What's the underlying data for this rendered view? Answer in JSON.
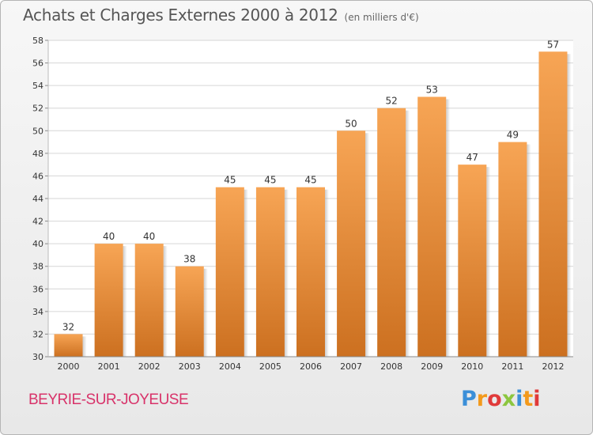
{
  "title": "Achats et Charges Externes 2000 à 2012",
  "subtitle": "(en milliers d'€)",
  "commune": "BEYRIE-SUR-JOYEUSE",
  "logo": {
    "letters": [
      "P",
      "r",
      "o",
      "x",
      "i",
      "t",
      "i"
    ],
    "colors": [
      "#3b8fd8",
      "#f39a1c",
      "#e03a3a",
      "#8cc63f",
      "#3b8fd8",
      "#f39a1c",
      "#e03a3a"
    ]
  },
  "colors": {
    "bar_light": "#f7a555",
    "bar_dark": "#cc7020",
    "grid": "#d6d6d6",
    "axis_text": "#333333"
  },
  "chart_data": {
    "type": "bar",
    "categories": [
      "2000",
      "2001",
      "2002",
      "2003",
      "2004",
      "2005",
      "2006",
      "2007",
      "2008",
      "2009",
      "2010",
      "2011",
      "2012"
    ],
    "values": [
      32,
      40,
      40,
      38,
      45,
      45,
      45,
      50,
      52,
      53,
      47,
      49,
      57
    ],
    "ylim": [
      30,
      58
    ],
    "yticks": [
      30,
      32,
      34,
      36,
      38,
      40,
      42,
      44,
      46,
      48,
      50,
      52,
      54,
      56,
      58
    ],
    "grid": true
  }
}
